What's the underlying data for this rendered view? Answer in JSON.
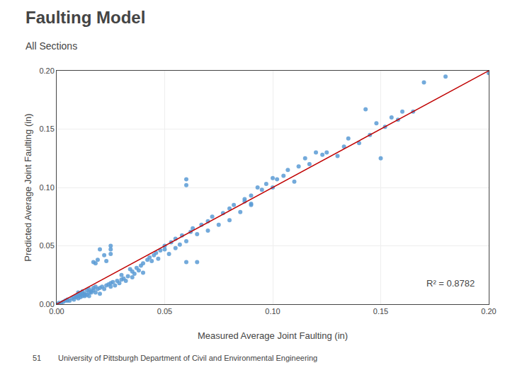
{
  "chart_data": {
    "type": "scatter",
    "title": "Faulting Model",
    "subtitle": "All Sections",
    "xlabel": "Measured Average Joint Faulting (in)",
    "ylabel": "Predicted Average Joint Faulting (in)",
    "xlim": [
      0.0,
      0.2
    ],
    "ylim": [
      0.0,
      0.2
    ],
    "xticks": [
      {
        "value": 0.0,
        "label": "0.00"
      },
      0.05,
      {
        "value": 0.1,
        "label": "0.10"
      },
      0.15,
      {
        "value": 0.2,
        "label": "0.20"
      }
    ],
    "yticks": [
      {
        "value": 0.0,
        "label": "0.00"
      },
      0.05,
      {
        "value": 0.1,
        "label": "0.10"
      },
      0.15,
      {
        "value": 0.2,
        "label": "0.20"
      }
    ],
    "grid": true,
    "annotations": [
      "R² = 0.8782",
      "51",
      "University of Pittsburgh Department of Civil and Environmental Engineering"
    ],
    "series": [
      {
        "type": "scatter",
        "color": "#5B9BD5",
        "marker": "circle",
        "x": [
          0.0,
          0.001,
          0.002,
          0.003,
          0.004,
          0.005,
          0.005,
          0.006,
          0.007,
          0.008,
          0.009,
          0.01,
          0.01,
          0.011,
          0.012,
          0.013,
          0.014,
          0.015,
          0.015,
          0.016,
          0.017,
          0.018,
          0.019,
          0.02,
          0.02,
          0.021,
          0.022,
          0.023,
          0.024,
          0.025,
          0.025,
          0.026,
          0.027,
          0.028,
          0.029,
          0.01,
          0.011,
          0.012,
          0.013,
          0.014,
          0.015,
          0.016,
          0.017,
          0.018,
          0.008,
          0.009,
          0.01,
          0.011,
          0.012,
          0.013,
          0.03,
          0.03,
          0.031,
          0.032,
          0.033,
          0.034,
          0.035,
          0.035,
          0.036,
          0.037,
          0.038,
          0.039,
          0.04,
          0.04,
          0.042,
          0.043,
          0.044,
          0.045,
          0.046,
          0.047,
          0.048,
          0.025,
          0.025,
          0.025,
          0.023,
          0.02,
          0.022,
          0.018,
          0.019,
          0.017,
          0.05,
          0.05,
          0.052,
          0.053,
          0.055,
          0.055,
          0.057,
          0.058,
          0.06,
          0.062,
          0.063,
          0.065,
          0.067,
          0.07,
          0.07,
          0.072,
          0.075,
          0.077,
          0.08,
          0.08,
          0.082,
          0.085,
          0.087,
          0.09,
          0.09,
          0.093,
          0.095,
          0.097,
          0.1,
          0.1,
          0.102,
          0.105,
          0.107,
          0.11,
          0.112,
          0.115,
          0.117,
          0.12,
          0.123,
          0.125,
          0.13,
          0.133,
          0.135,
          0.14,
          0.143,
          0.145,
          0.148,
          0.15,
          0.152,
          0.155,
          0.158,
          0.16,
          0.165,
          0.17,
          0.2,
          0.06,
          0.065,
          0.06,
          0.06,
          0.087,
          0.09,
          0.18
        ],
        "values": [
          0.0,
          0.001,
          0.001,
          0.002,
          0.003,
          0.003,
          0.004,
          0.003,
          0.005,
          0.004,
          0.006,
          0.007,
          0.005,
          0.008,
          0.007,
          0.009,
          0.008,
          0.01,
          0.007,
          0.011,
          0.012,
          0.01,
          0.013,
          0.014,
          0.009,
          0.015,
          0.013,
          0.016,
          0.017,
          0.015,
          0.018,
          0.019,
          0.016,
          0.02,
          0.018,
          0.01,
          0.009,
          0.011,
          0.008,
          0.012,
          0.013,
          0.01,
          0.014,
          0.015,
          0.006,
          0.007,
          0.008,
          0.006,
          0.009,
          0.007,
          0.021,
          0.025,
          0.022,
          0.02,
          0.024,
          0.03,
          0.028,
          0.023,
          0.026,
          0.031,
          0.029,
          0.033,
          0.027,
          0.035,
          0.038,
          0.04,
          0.037,
          0.042,
          0.044,
          0.039,
          0.046,
          0.05,
          0.047,
          0.043,
          0.037,
          0.047,
          0.042,
          0.035,
          0.038,
          0.036,
          0.05,
          0.047,
          0.043,
          0.053,
          0.048,
          0.056,
          0.051,
          0.059,
          0.054,
          0.062,
          0.065,
          0.06,
          0.068,
          0.063,
          0.071,
          0.075,
          0.068,
          0.078,
          0.072,
          0.082,
          0.085,
          0.079,
          0.09,
          0.085,
          0.093,
          0.1,
          0.098,
          0.103,
          0.108,
          0.1,
          0.107,
          0.11,
          0.115,
          0.105,
          0.118,
          0.125,
          0.12,
          0.13,
          0.128,
          0.13,
          0.127,
          0.135,
          0.142,
          0.138,
          0.167,
          0.145,
          0.155,
          0.125,
          0.152,
          0.16,
          0.158,
          0.165,
          0.165,
          0.19,
          0.198,
          0.036,
          0.036,
          0.107,
          0.102,
          0.088,
          0.086,
          0.195
        ]
      },
      {
        "type": "line",
        "color": "#C00000",
        "line_style": "solid",
        "x": [
          0.0,
          0.2
        ],
        "values": [
          0.0,
          0.2
        ]
      }
    ]
  }
}
